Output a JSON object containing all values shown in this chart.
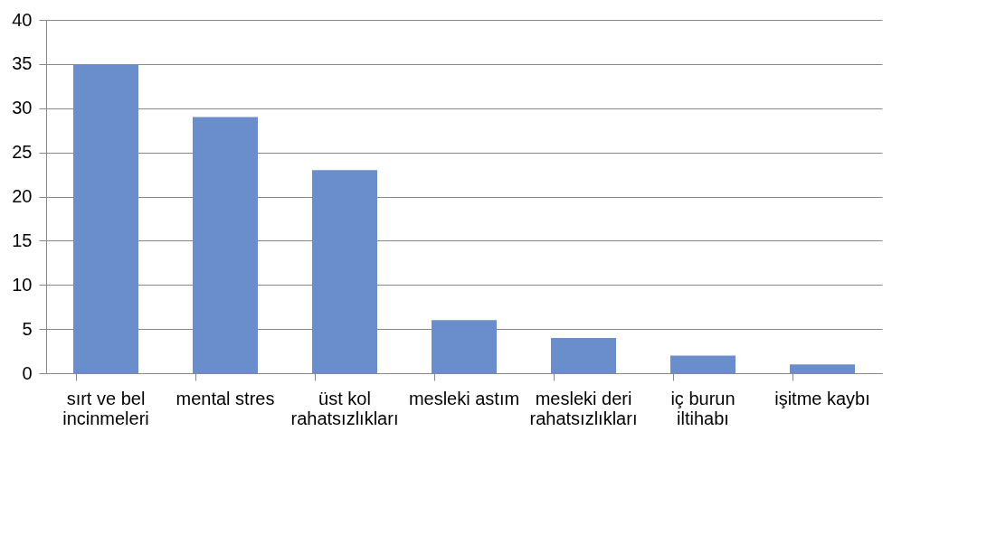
{
  "chart_data": {
    "type": "bar",
    "categories": [
      "sırt ve bel incinmeleri",
      "mental stres",
      "üst kol rahatsızlıkları",
      "mesleki astım",
      "mesleki deri rahatsızlıkları",
      "iç burun iltihabı",
      "işitme kaybı"
    ],
    "values": [
      35,
      29,
      23,
      6,
      4,
      2,
      1
    ],
    "color": "#6a8dcb",
    "ylim": [
      0,
      40
    ],
    "yticks": [
      0,
      5,
      10,
      15,
      20,
      25,
      30,
      35,
      40
    ],
    "grid": "y"
  }
}
